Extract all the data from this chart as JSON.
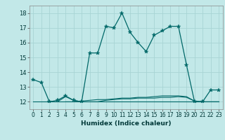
{
  "title": "",
  "xlabel": "Humidex (Indice chaleur)",
  "ylabel": "",
  "bg_color": "#c2e8e8",
  "grid_color": "#a8d4d4",
  "line_color": "#006868",
  "xlim": [
    -0.5,
    23.5
  ],
  "ylim": [
    11.5,
    18.5
  ],
  "yticks": [
    12,
    13,
    14,
    15,
    16,
    17,
    18
  ],
  "xticks": [
    0,
    1,
    2,
    3,
    4,
    5,
    6,
    7,
    8,
    9,
    10,
    11,
    12,
    13,
    14,
    15,
    16,
    17,
    18,
    19,
    20,
    21,
    22,
    23
  ],
  "main_x": [
    0,
    1,
    2,
    3,
    4,
    5,
    6,
    7,
    8,
    9,
    10,
    11,
    12,
    13,
    14,
    15,
    16,
    17,
    18,
    19,
    20,
    21,
    22,
    23
  ],
  "main_y": [
    13.5,
    13.3,
    12.0,
    12.1,
    12.4,
    12.1,
    12.0,
    15.3,
    15.3,
    17.1,
    17.0,
    18.0,
    16.7,
    16.0,
    15.4,
    16.5,
    16.8,
    17.1,
    17.1,
    14.5,
    12.0,
    12.0,
    12.8,
    12.8
  ],
  "flat_lines": [
    {
      "x": [
        0,
        1,
        2,
        3,
        4,
        5,
        6,
        7,
        8,
        9,
        10,
        11,
        12,
        13,
        14,
        15,
        16,
        17,
        18,
        19,
        20,
        21,
        22,
        23
      ],
      "y": [
        12.0,
        12.0,
        12.0,
        12.0,
        12.0,
        12.0,
        12.0,
        12.0,
        12.0,
        12.0,
        12.0,
        12.0,
        12.0,
        12.0,
        12.0,
        12.0,
        12.0,
        12.0,
        12.0,
        12.0,
        12.0,
        12.0,
        12.0,
        12.0
      ]
    },
    {
      "x": [
        2,
        3,
        4,
        5,
        6,
        7,
        8,
        9,
        10,
        11,
        12,
        13,
        14,
        15,
        16,
        17,
        18,
        19,
        20,
        21,
        22,
        23
      ],
      "y": [
        12.0,
        12.0,
        12.35,
        12.1,
        12.0,
        12.0,
        12.0,
        12.1,
        12.15,
        12.2,
        12.2,
        12.25,
        12.25,
        12.25,
        12.3,
        12.3,
        12.35,
        12.3,
        12.05,
        12.0,
        12.0,
        12.0
      ]
    },
    {
      "x": [
        4,
        5,
        6,
        7,
        8,
        9,
        10,
        11,
        12,
        13,
        14,
        15,
        16,
        17,
        18,
        19,
        20,
        21,
        22,
        23
      ],
      "y": [
        12.0,
        12.0,
        12.05,
        12.1,
        12.15,
        12.15,
        12.2,
        12.25,
        12.25,
        12.3,
        12.3,
        12.35,
        12.4,
        12.4,
        12.4,
        12.35,
        12.05,
        12.0,
        12.0,
        12.0
      ]
    }
  ]
}
